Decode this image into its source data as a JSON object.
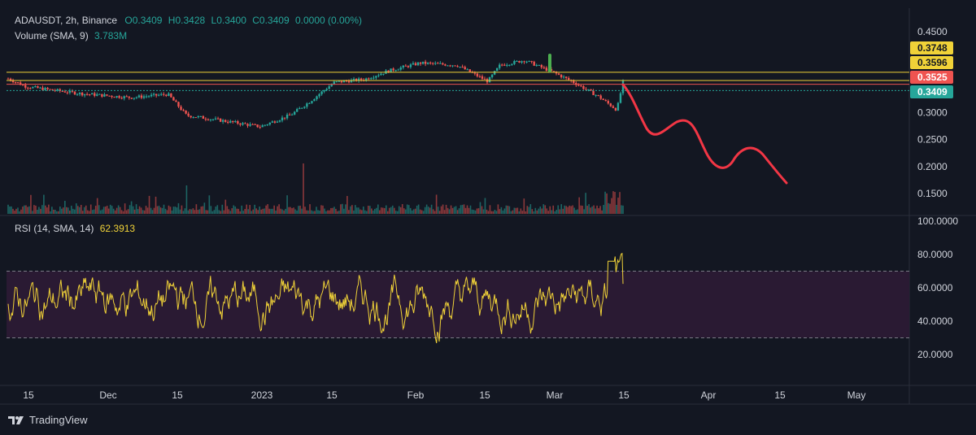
{
  "header": {
    "symbol": "ADAUSDT, 2h, Binance",
    "ohlc": {
      "o": "O0.3409",
      "h": "H0.3428",
      "l": "L0.3400",
      "c": "C0.3409",
      "chg": "0.0000 (0.00%)"
    },
    "volume_label": "Volume (SMA, 9)",
    "volume_value": "3.783M"
  },
  "rsi_header": {
    "label": "RSI (14, SMA, 14)",
    "value": "62.3913"
  },
  "brand": "TradingView",
  "colors": {
    "up": "#26a69a",
    "down": "#ef5350",
    "rsi": "#f0d238",
    "yellow_line": "#f0d238",
    "red_line": "#ef5350",
    "drawing": "#f23645",
    "green_mark": "#4caf50",
    "band": "#2a1a33"
  },
  "chart_data": [
    {
      "type": "candlestick",
      "ylim": [
        0.1,
        0.47
      ],
      "y_ticks": [
        "0.4500",
        "0.3000",
        "0.2500",
        "0.2000",
        "0.1500"
      ],
      "x_ticks": [
        "15",
        "Dec",
        "15",
        "2023",
        "15",
        "Feb",
        "15",
        "Mar",
        "15",
        "Apr",
        "15",
        "May"
      ],
      "price_path": [
        [
          0,
          0.363
        ],
        [
          0.03,
          0.348
        ],
        [
          0.12,
          0.335
        ],
        [
          0.2,
          0.328
        ],
        [
          0.26,
          0.334
        ],
        [
          0.29,
          0.295
        ],
        [
          0.36,
          0.283
        ],
        [
          0.41,
          0.274
        ],
        [
          0.46,
          0.296
        ],
        [
          0.49,
          0.32
        ],
        [
          0.53,
          0.356
        ],
        [
          0.58,
          0.362
        ],
        [
          0.62,
          0.378
        ],
        [
          0.67,
          0.392
        ],
        [
          0.73,
          0.388
        ],
        [
          0.78,
          0.358
        ],
        [
          0.8,
          0.388
        ],
        [
          0.84,
          0.397
        ],
        [
          0.89,
          0.373
        ],
        [
          0.92,
          0.356
        ],
        [
          0.96,
          0.33
        ],
        [
          0.99,
          0.305
        ],
        [
          1.0,
          0.357
        ]
      ],
      "levels": [
        {
          "price": 0.3748,
          "label": "0.3748",
          "color": "#f0d238"
        },
        {
          "price": 0.3596,
          "label": "0.3596",
          "color": "#f0d238"
        },
        {
          "price": 0.3525,
          "label": "0.3525",
          "color": "#ef5350"
        },
        {
          "price": 0.3409,
          "label": "0.3409",
          "color": "#26a69a"
        }
      ]
    },
    {
      "type": "line",
      "name": "RSI",
      "ylim": [
        5,
        100
      ],
      "y_ticks": [
        "100.0000",
        "80.0000",
        "60.0000",
        "40.0000",
        "20.0000"
      ],
      "band": [
        30,
        70
      ],
      "last_value": 62.3913
    }
  ]
}
